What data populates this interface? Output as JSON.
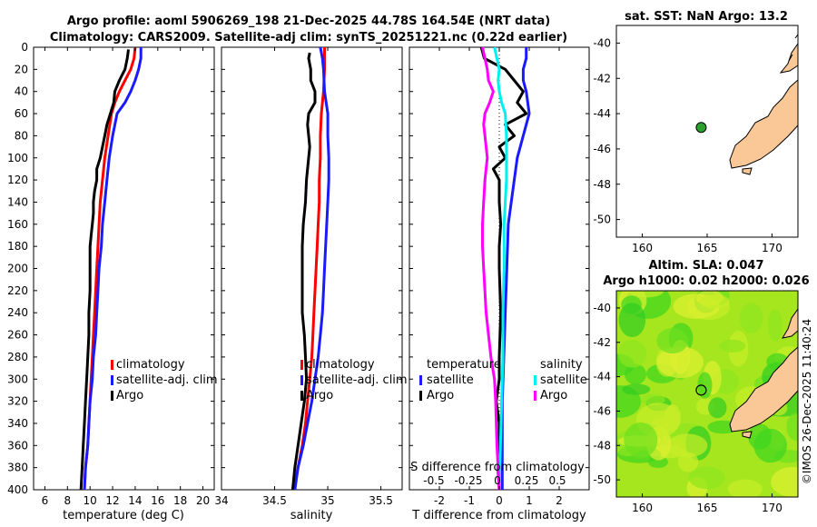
{
  "title": {
    "line1": "Argo profile: aoml 5906269_198 21-Dec-2025 44.78S 164.54E (NRT data)",
    "line2": "Climatology: CARS2009. Satellite-adj clim: synTS_20251221.nc (0.22d earlier)"
  },
  "colors": {
    "red": "#ff0000",
    "blue": "#1a1aff",
    "black": "#000000",
    "cyan": "#00f0f0",
    "magenta": "#ff00ff",
    "land": "#f9c896"
  },
  "depth_axis": {
    "ticks": [
      0,
      20,
      40,
      60,
      80,
      100,
      120,
      140,
      160,
      180,
      200,
      220,
      240,
      260,
      280,
      300,
      320,
      340,
      360,
      380,
      400
    ],
    "range": [
      0,
      400
    ]
  },
  "chart_data": [
    {
      "type": "line",
      "id": "temperature",
      "xlabel": "temperature (deg C)",
      "xlim": [
        5,
        21
      ],
      "xticks": [
        6,
        8,
        10,
        12,
        14,
        16,
        18,
        20
      ],
      "ylim": [
        0,
        400
      ],
      "y_reversed": true,
      "legend": [
        "climatology",
        "satellite-adj. clim",
        "Argo"
      ],
      "legend_location": "lower-right",
      "series": [
        {
          "name": "climatology",
          "color": "red",
          "depth": [
            0,
            10,
            20,
            30,
            40,
            50,
            60,
            80,
            100,
            120,
            140,
            160,
            180,
            200,
            220,
            240,
            260,
            280,
            300,
            320,
            340,
            360,
            380,
            400
          ],
          "values": [
            14.0,
            13.9,
            13.6,
            13.1,
            12.6,
            12.2,
            11.9,
            11.6,
            11.3,
            11.1,
            10.9,
            10.8,
            10.7,
            10.6,
            10.5,
            10.4,
            10.3,
            10.2,
            10.1,
            10.0,
            9.9,
            9.8,
            9.6,
            9.5
          ]
        },
        {
          "name": "satellite-adj. clim",
          "color": "blue",
          "depth": [
            0,
            10,
            20,
            30,
            40,
            50,
            60,
            80,
            100,
            120,
            140,
            160,
            180,
            200,
            220,
            240,
            260,
            280,
            300,
            320,
            340,
            360,
            380,
            400
          ],
          "values": [
            14.5,
            14.5,
            14.3,
            14.0,
            13.6,
            13.1,
            12.4,
            12.0,
            11.7,
            11.5,
            11.3,
            11.1,
            11.0,
            10.8,
            10.7,
            10.6,
            10.5,
            10.3,
            10.2,
            10.0,
            9.9,
            9.8,
            9.6,
            9.5
          ]
        },
        {
          "name": "Argo",
          "color": "black",
          "depth": [
            2,
            10,
            20,
            30,
            40,
            50,
            60,
            70,
            80,
            90,
            100,
            110,
            120,
            130,
            140,
            150,
            160,
            170,
            180,
            200,
            220,
            240,
            260,
            280,
            300,
            320,
            340,
            360,
            380,
            400
          ],
          "values": [
            13.4,
            13.3,
            13.1,
            12.6,
            12.2,
            12.1,
            11.8,
            11.5,
            11.3,
            11.1,
            10.9,
            10.6,
            10.6,
            10.4,
            10.3,
            10.3,
            10.2,
            10.1,
            10.0,
            10.0,
            10.0,
            9.9,
            9.9,
            9.8,
            9.7,
            9.6,
            9.5,
            9.4,
            9.3,
            9.2
          ]
        }
      ]
    },
    {
      "type": "line",
      "id": "salinity",
      "xlabel": "salinity",
      "xlim": [
        34,
        35.7
      ],
      "xticks": [
        "34",
        "34.5",
        "35",
        "35.5"
      ],
      "ylim": [
        0,
        400
      ],
      "y_reversed": true,
      "legend": [
        "climatology",
        "satellite-adj. clim",
        "Argo"
      ],
      "legend_location": "lower-right",
      "series": [
        {
          "name": "climatology",
          "color": "red",
          "depth": [
            0,
            20,
            40,
            60,
            80,
            100,
            120,
            140,
            160,
            180,
            200,
            220,
            240,
            260,
            280,
            300,
            320,
            340,
            360,
            380,
            400
          ],
          "values": [
            34.97,
            34.97,
            34.96,
            34.94,
            34.93,
            34.93,
            34.92,
            34.92,
            34.91,
            34.9,
            34.89,
            34.88,
            34.87,
            34.86,
            34.85,
            34.83,
            34.81,
            34.79,
            34.76,
            34.72,
            34.68
          ]
        },
        {
          "name": "satellite-adj. clim",
          "color": "blue",
          "depth": [
            0,
            10,
            20,
            40,
            60,
            80,
            100,
            120,
            140,
            160,
            180,
            200,
            220,
            240,
            260,
            280,
            300,
            320,
            340,
            360,
            380,
            400
          ],
          "values": [
            34.93,
            34.95,
            34.96,
            34.97,
            35.0,
            35.0,
            35.01,
            35.01,
            35.0,
            34.99,
            34.98,
            34.97,
            34.96,
            34.95,
            34.93,
            34.91,
            34.88,
            34.85,
            34.81,
            34.77,
            34.72,
            34.69
          ]
        },
        {
          "name": "Argo",
          "color": "black",
          "depth": [
            5,
            10,
            20,
            30,
            40,
            50,
            60,
            70,
            80,
            90,
            100,
            120,
            140,
            160,
            180,
            200,
            220,
            240,
            260,
            280,
            300,
            320,
            340,
            360,
            380,
            400
          ],
          "values": [
            34.83,
            34.82,
            34.84,
            34.84,
            34.88,
            34.88,
            34.82,
            34.81,
            34.82,
            34.83,
            34.82,
            34.8,
            34.79,
            34.77,
            34.76,
            34.76,
            34.76,
            34.76,
            34.78,
            34.79,
            34.8,
            34.78,
            34.75,
            34.72,
            34.69,
            34.67
          ]
        }
      ]
    },
    {
      "type": "line",
      "id": "differences",
      "xlabel": "T difference from climatology",
      "xlim": [
        -3,
        3
      ],
      "xticks": [
        "-2",
        "-1",
        "0",
        "1",
        "2"
      ],
      "s_axis_title": "S difference from climatology",
      "s_axis_ticks": [
        "-0.5",
        "-0.25",
        "0",
        "0.25",
        "0.5"
      ],
      "ylim": [
        0,
        400
      ],
      "y_reversed": true,
      "legend_temperature_title": "temperature",
      "legend_salinity_title": "salinity",
      "legend_temperature": [
        "satellite",
        "Argo"
      ],
      "legend_salinity": [
        "satellite",
        "Argo"
      ],
      "series": [
        {
          "name": "temperature satellite",
          "color": "blue",
          "depth": [
            0,
            10,
            20,
            30,
            40,
            60,
            80,
            100,
            120,
            140,
            160,
            200,
            240,
            280,
            320,
            360,
            400
          ],
          "values": [
            0.9,
            0.9,
            0.8,
            0.8,
            0.9,
            1.0,
            0.8,
            0.6,
            0.5,
            0.4,
            0.3,
            0.25,
            0.2,
            0.15,
            0.1,
            0.1,
            0.1
          ]
        },
        {
          "name": "temperature Argo",
          "color": "black",
          "depth": [
            0,
            10,
            20,
            30,
            40,
            50,
            60,
            70,
            80,
            90,
            100,
            110,
            120,
            140,
            160,
            180,
            200,
            240,
            280,
            300,
            320,
            340,
            360,
            380,
            400
          ],
          "values": [
            -0.6,
            -0.5,
            0.2,
            0.5,
            0.8,
            0.6,
            0.9,
            0.2,
            0.5,
            0.0,
            0.2,
            -0.2,
            0.0,
            0.0,
            0.05,
            0.0,
            0.0,
            0.05,
            0.0,
            0.0,
            -0.1,
            0.0,
            0.0,
            -0.05,
            0.0
          ]
        },
        {
          "name": "salinity satellite",
          "color": "cyan",
          "depth": [
            0,
            10,
            20,
            30,
            40,
            50,
            60,
            80,
            100,
            120,
            140,
            160,
            180,
            200,
            240,
            280,
            320,
            360,
            400
          ],
          "values": [
            -0.04,
            -0.02,
            0.0,
            -0.01,
            0.0,
            0.02,
            0.05,
            0.06,
            0.06,
            0.06,
            0.05,
            0.04,
            0.04,
            0.04,
            0.03,
            0.03,
            0.02,
            0.01,
            0.0
          ]
        },
        {
          "name": "salinity Argo",
          "color": "magenta",
          "depth": [
            0,
            10,
            20,
            30,
            40,
            50,
            60,
            70,
            80,
            90,
            100,
            120,
            140,
            160,
            180,
            200,
            240,
            280,
            300,
            320,
            360,
            400
          ],
          "values": [
            -0.14,
            -0.12,
            -0.1,
            -0.09,
            -0.05,
            -0.08,
            -0.12,
            -0.13,
            -0.12,
            -0.11,
            -0.1,
            -0.12,
            -0.13,
            -0.14,
            -0.14,
            -0.13,
            -0.11,
            -0.07,
            -0.04,
            -0.03,
            -0.02,
            0.0
          ]
        }
      ]
    },
    {
      "type": "map",
      "id": "sst-map",
      "title": "sat. SST: NaN Argo: 13.2",
      "xlim": [
        158,
        172
      ],
      "ylim": [
        -51,
        -39
      ],
      "xticks": [
        "160",
        "165",
        "170"
      ],
      "yticks": [
        "-40",
        "-42",
        "-44",
        "-46",
        "-48",
        "-50"
      ],
      "argo_lon": 164.54,
      "argo_lat": -44.78
    },
    {
      "type": "heatmap",
      "id": "sla-map",
      "title_line1": "Altim. SLA: 0.047",
      "title_line2": "Argo h1000: 0.02 h2000: 0.026",
      "xlim": [
        158,
        172
      ],
      "ylim": [
        -51,
        -39
      ],
      "xticks": [
        "160",
        "165",
        "170"
      ],
      "yticks": [
        "-40",
        "-42",
        "-44",
        "-46",
        "-48",
        "-50"
      ],
      "argo_lon": 164.54,
      "argo_lat": -44.78,
      "credit": "©IMOS 26-Dec-2025 11:40:24"
    }
  ]
}
